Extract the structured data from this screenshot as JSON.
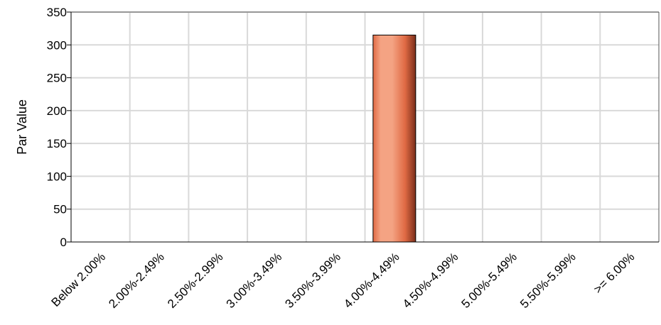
{
  "chart_data": {
    "type": "bar",
    "title": "",
    "xlabel": "",
    "ylabel": "Par Value",
    "categories": [
      "Below 2.00%",
      "2.00%-2.49%",
      "2.50%-2.99%",
      "3.00%-3.49%",
      "3.50%-3.99%",
      "4.00%-4.49%",
      "4.50%-4.99%",
      "5.00%-5.49%",
      "5.50%-5.99%",
      ">= 6.00%"
    ],
    "values": [
      0,
      0,
      0,
      0,
      0,
      315,
      0,
      0,
      0,
      0
    ],
    "ylim": [
      0,
      350
    ],
    "yticks": [
      0,
      50,
      100,
      150,
      200,
      250,
      300,
      350
    ],
    "grid": true,
    "legend": "none",
    "colors": {
      "bar_dark": "#7a2e1a",
      "bar_mid": "#e06a44",
      "bar_light": "#f4a383",
      "grid": "#d9d9d9",
      "axis": "#000000"
    }
  }
}
